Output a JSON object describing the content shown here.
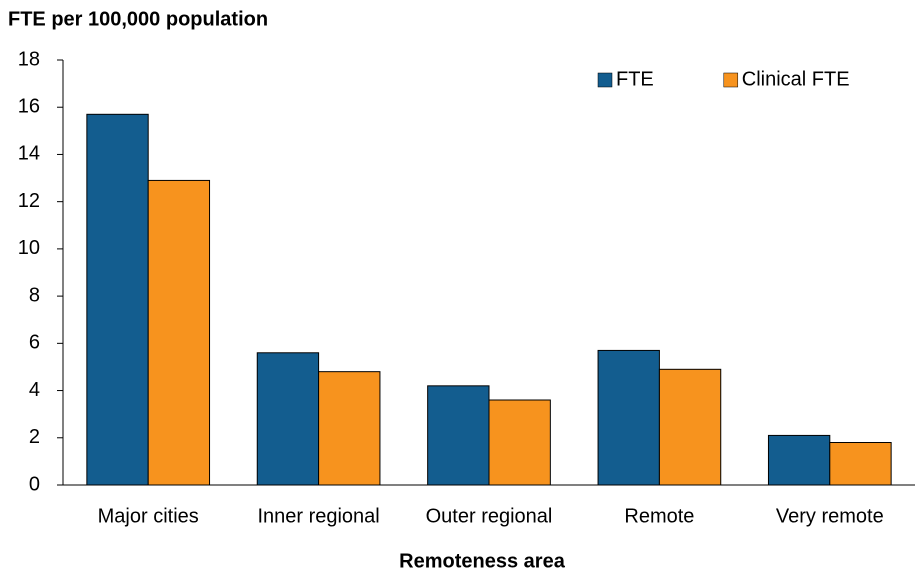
{
  "chart_data": {
    "type": "bar",
    "title": "FTE per 100,000 population",
    "xlabel": "Remoteness area",
    "categories": [
      "Major cities",
      "Inner regional",
      "Outer regional",
      "Remote",
      "Very remote"
    ],
    "series": [
      {
        "name": "FTE",
        "color": "#135d8f",
        "values": [
          15.7,
          5.6,
          4.2,
          5.7,
          2.1
        ]
      },
      {
        "name": "Clinical FTE",
        "color": "#f7931e",
        "values": [
          12.9,
          4.8,
          3.6,
          4.9,
          1.8
        ]
      }
    ],
    "ylim": [
      0,
      18
    ],
    "yticks": [
      0,
      2,
      4,
      6,
      8,
      10,
      12,
      14,
      16,
      18
    ],
    "grid": false,
    "legend": "upper right"
  }
}
